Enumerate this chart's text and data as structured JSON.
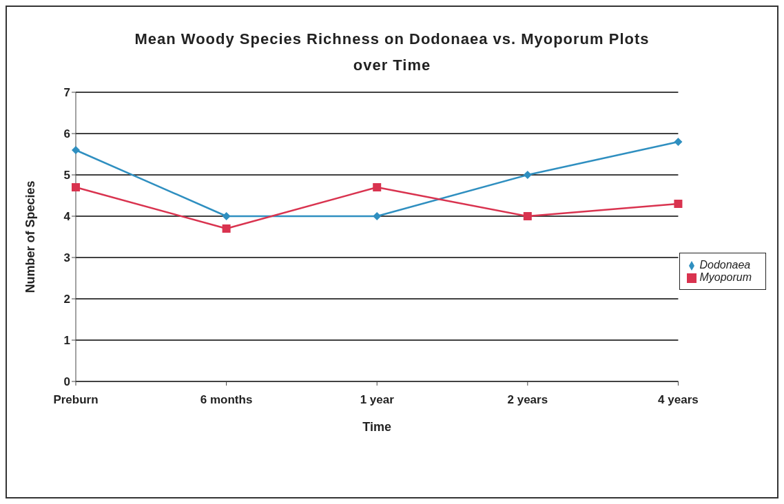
{
  "chart_data": {
    "type": "line",
    "title": "Mean Woody Species Richness on Dodonaea vs. Myoporum Plots over Time",
    "xlabel": "Time",
    "ylabel": "Number of Species",
    "categories": [
      "Preburn",
      "6 months",
      "1 year",
      "2 years",
      "4 years"
    ],
    "series": [
      {
        "name": "Dodonaea",
        "color": "#2f8fc0",
        "marker": "diamond",
        "values": [
          5.6,
          4.0,
          4.0,
          5.0,
          5.8
        ]
      },
      {
        "name": "Myoporum",
        "color": "#d9334f",
        "marker": "square",
        "values": [
          4.7,
          3.7,
          4.7,
          4.0,
          4.3
        ]
      }
    ],
    "ylim": [
      0,
      7
    ],
    "yticks": [
      0,
      1,
      2,
      3,
      4,
      5,
      6,
      7
    ],
    "grid": "y",
    "legend": "right",
    "line_style": "solid"
  }
}
